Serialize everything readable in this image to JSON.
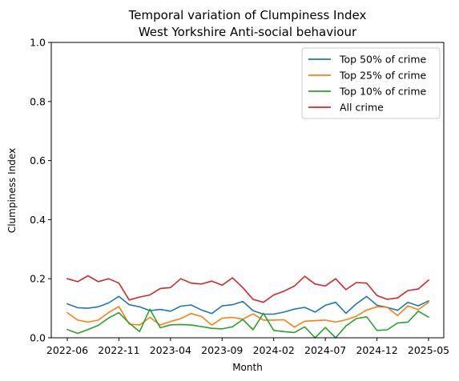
{
  "chart_data": {
    "type": "line",
    "title": "Temporal variation of Clumpiness Index",
    "subtitle": "West Yorkshire Anti-social behaviour",
    "xlabel": "Month",
    "ylabel": "Clumpiness Index",
    "ylim": [
      0,
      1.0
    ],
    "y_ticks": [
      "0.0",
      "0.2",
      "0.4",
      "0.6",
      "0.8",
      "1.0"
    ],
    "y_tick_values": [
      0,
      0.2,
      0.4,
      0.6,
      0.8,
      1.0
    ],
    "x_tick_labels": [
      "2022-06",
      "2022-11",
      "2023-04",
      "2023-09",
      "2024-02",
      "2024-07",
      "2024-12",
      "2025-05"
    ],
    "x_tick_index": [
      0,
      5,
      10,
      15,
      20,
      25,
      30,
      35
    ],
    "legend_position": "top-right",
    "grid": false,
    "x": [
      "2022-06",
      "2022-07",
      "2022-08",
      "2022-09",
      "2022-10",
      "2022-11",
      "2022-12",
      "2023-01",
      "2023-02",
      "2023-03",
      "2023-04",
      "2023-05",
      "2023-06",
      "2023-07",
      "2023-08",
      "2023-09",
      "2023-10",
      "2023-11",
      "2023-12",
      "2024-01",
      "2024-02",
      "2024-03",
      "2024-04",
      "2024-05",
      "2024-06",
      "2024-07",
      "2024-08",
      "2024-09",
      "2024-10",
      "2024-11",
      "2024-12",
      "2025-01",
      "2025-02",
      "2025-03",
      "2025-04",
      "2025-05"
    ],
    "series": [
      {
        "name": "Top 50% of crime",
        "color": "#1f77b4",
        "values": [
          0.115,
          0.102,
          0.1,
          0.105,
          0.118,
          0.14,
          0.112,
          0.105,
          0.092,
          0.096,
          0.09,
          0.107,
          0.111,
          0.094,
          0.082,
          0.108,
          0.112,
          0.123,
          0.092,
          0.08,
          0.08,
          0.087,
          0.097,
          0.103,
          0.087,
          0.11,
          0.12,
          0.083,
          0.115,
          0.14,
          0.11,
          0.103,
          0.093,
          0.12,
          0.108,
          0.125
        ]
      },
      {
        "name": "Top 25% of crime",
        "color": "#ff7f0e",
        "values": [
          0.085,
          0.06,
          0.053,
          0.06,
          0.085,
          0.106,
          0.046,
          0.043,
          0.069,
          0.043,
          0.055,
          0.065,
          0.082,
          0.072,
          0.043,
          0.066,
          0.069,
          0.063,
          0.081,
          0.06,
          0.06,
          0.061,
          0.036,
          0.056,
          0.058,
          0.06,
          0.053,
          0.061,
          0.073,
          0.094,
          0.105,
          0.103,
          0.075,
          0.108,
          0.095,
          0.12
        ]
      },
      {
        "name": "Top 10% of crime",
        "color": "#2ca02c",
        "values": [
          0.028,
          0.015,
          0.028,
          0.042,
          0.067,
          0.085,
          0.05,
          0.021,
          0.097,
          0.034,
          0.044,
          0.045,
          0.043,
          0.038,
          0.032,
          0.03,
          0.037,
          0.062,
          0.027,
          0.083,
          0.025,
          0.021,
          0.018,
          0.037,
          0.0,
          0.035,
          0.0,
          0.04,
          0.065,
          0.071,
          0.025,
          0.027,
          0.05,
          0.053,
          0.09,
          0.07
        ]
      },
      {
        "name": "All crime",
        "color": "#d62728",
        "values": [
          0.2,
          0.19,
          0.21,
          0.19,
          0.2,
          0.185,
          0.128,
          0.138,
          0.145,
          0.167,
          0.17,
          0.2,
          0.185,
          0.182,
          0.192,
          0.178,
          0.203,
          0.17,
          0.13,
          0.12,
          0.145,
          0.158,
          0.175,
          0.208,
          0.182,
          0.175,
          0.2,
          0.163,
          0.187,
          0.185,
          0.143,
          0.13,
          0.135,
          0.16,
          0.165,
          0.195
        ]
      }
    ]
  }
}
